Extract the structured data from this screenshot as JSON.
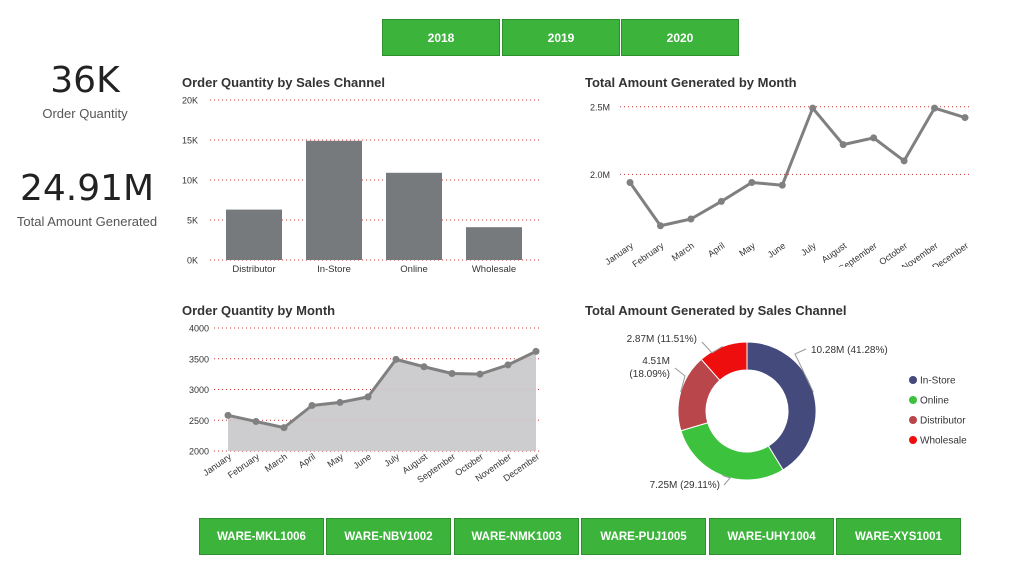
{
  "years": [
    "2018",
    "2019",
    "2020"
  ],
  "kpis": [
    {
      "value": "36K",
      "label": "Order Quantity"
    },
    {
      "value": "24.91M",
      "label": "Total Amount Generated"
    }
  ],
  "warehouses": [
    "WARE-MKL1006",
    "WARE-NBV1002",
    "WARE-NMK1003",
    "WARE-PUJ1005",
    "WARE-UHY1004",
    "WARE-XYS1001"
  ],
  "colors": {
    "button": "#3cb43c",
    "gridline": "#cc3333",
    "bar": "#767a7d",
    "area": "#c8c8ca",
    "line": "#808080"
  },
  "chart_data": [
    {
      "type": "bar",
      "title": "Order Quantity by Sales Channel",
      "categories": [
        "Distributor",
        "In-Store",
        "Online",
        "Wholesale"
      ],
      "values": [
        6300,
        14900,
        10900,
        4100
      ],
      "ylim": [
        0,
        20000
      ],
      "yticks": [
        "0K",
        "5K",
        "10K",
        "15K",
        "20K"
      ],
      "ytick_values": [
        0,
        5000,
        10000,
        15000,
        20000
      ]
    },
    {
      "type": "line",
      "title": "Total Amount Generated by Month",
      "categories": [
        "January",
        "February",
        "March",
        "April",
        "May",
        "June",
        "July",
        "August",
        "September",
        "October",
        "November",
        "December"
      ],
      "values": [
        1.94,
        1.62,
        1.67,
        1.8,
        1.94,
        1.92,
        2.49,
        2.22,
        2.27,
        2.1,
        2.49,
        2.42
      ],
      "ylim": [
        1.5,
        2.55
      ],
      "yticks": [
        "2.0M",
        "2.5M"
      ],
      "ytick_values": [
        2.0,
        2.5
      ]
    },
    {
      "type": "area",
      "title": "Order Quantity by Month",
      "categories": [
        "January",
        "February",
        "March",
        "April",
        "May",
        "June",
        "July",
        "August",
        "September",
        "October",
        "November",
        "December"
      ],
      "values": [
        2580,
        2480,
        2380,
        2740,
        2790,
        2880,
        3490,
        3370,
        3260,
        3250,
        3400,
        3620
      ],
      "ylim": [
        2000,
        4000
      ],
      "yticks": [
        "2000",
        "2500",
        "3000",
        "3500",
        "4000"
      ],
      "ytick_values": [
        2000,
        2500,
        3000,
        3500,
        4000
      ]
    },
    {
      "type": "pie",
      "title": "Total Amount Generated by Sales Channel",
      "slices": [
        {
          "name": "In-Store",
          "value": 10.28,
          "label": "10.28M (41.28%)",
          "color": "#454a7c"
        },
        {
          "name": "Online",
          "value": 7.25,
          "label": "7.25M (29.11%)",
          "color": "#3cc23c"
        },
        {
          "name": "Distributor",
          "value": 4.51,
          "label_line1": "4.51M",
          "label_line2": "(18.09%)",
          "color": "#b8464a"
        },
        {
          "name": "Wholesale",
          "value": 2.87,
          "label": "2.87M (11.51%)",
          "color": "#ee0e0e"
        }
      ]
    }
  ]
}
